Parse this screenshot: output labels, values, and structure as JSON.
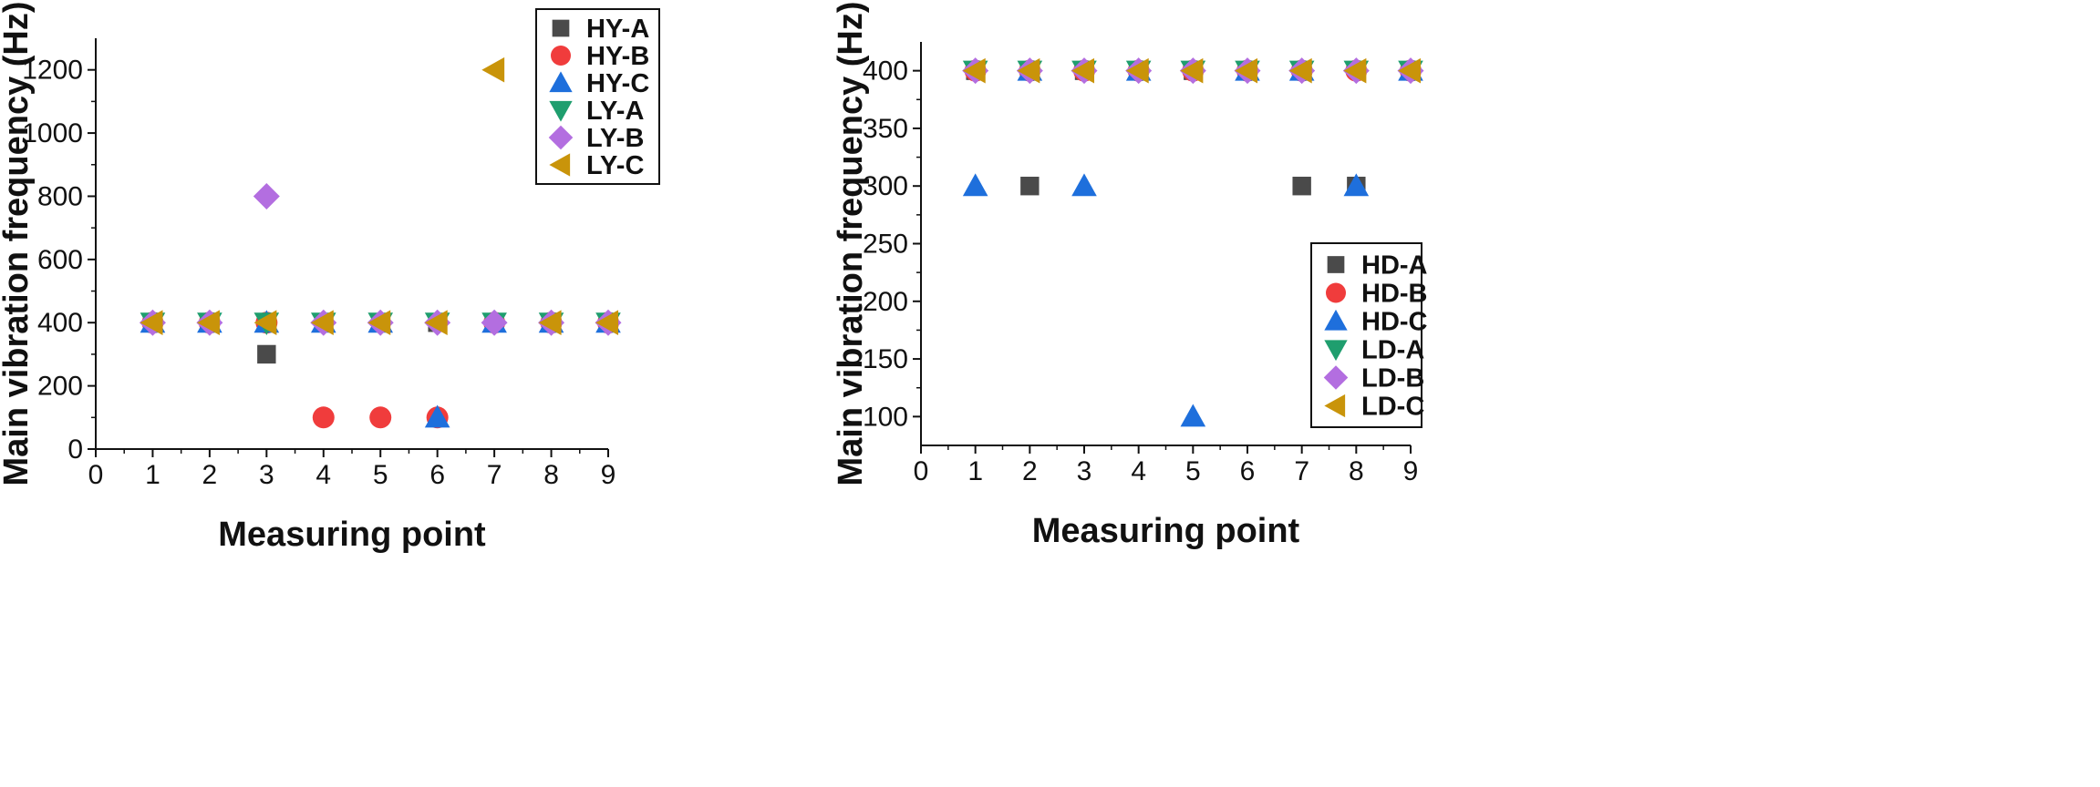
{
  "chart_data": [
    {
      "type": "scatter",
      "xlabel": "Measuring point",
      "ylabel": "Main vibration frequency (Hz)",
      "xlim": [
        0,
        9
      ],
      "ylim": [
        0,
        1300
      ],
      "xticks": [
        0,
        1,
        2,
        3,
        4,
        5,
        6,
        7,
        8,
        9
      ],
      "yticks": [
        0,
        200,
        400,
        600,
        800,
        1000,
        1200
      ],
      "legend_position": "top-right",
      "series": [
        {
          "name": "HY-A",
          "marker": "square",
          "color": "#4a4a4a",
          "x": [
            1,
            2,
            3,
            4,
            5,
            6,
            7,
            8,
            9
          ],
          "y": [
            400,
            400,
            300,
            400,
            400,
            400,
            400,
            400,
            400
          ]
        },
        {
          "name": "HY-B",
          "marker": "circle",
          "color": "#f03c3c",
          "x": [
            1,
            2,
            3,
            4,
            5,
            6,
            7,
            8,
            9
          ],
          "y": [
            400,
            400,
            400,
            100,
            100,
            100,
            400,
            400,
            400
          ]
        },
        {
          "name": "HY-C",
          "marker": "triangle-up",
          "color": "#1e6fdc",
          "x": [
            1,
            2,
            3,
            4,
            5,
            6,
            7,
            8,
            9
          ],
          "y": [
            400,
            400,
            400,
            400,
            400,
            100,
            400,
            400,
            400
          ]
        },
        {
          "name": "LY-A",
          "marker": "triangle-down",
          "color": "#1f9e6e",
          "x": [
            1,
            2,
            3,
            4,
            5,
            6,
            7,
            8,
            9
          ],
          "y": [
            400,
            400,
            400,
            400,
            400,
            400,
            400,
            400,
            400
          ]
        },
        {
          "name": "LY-B",
          "marker": "diamond",
          "color": "#b36ee0",
          "x": [
            1,
            2,
            3,
            4,
            5,
            6,
            7,
            8,
            9
          ],
          "y": [
            400,
            400,
            800,
            400,
            400,
            400,
            400,
            400,
            400
          ]
        },
        {
          "name": "LY-C",
          "marker": "triangle-left",
          "color": "#c9940a",
          "x": [
            1,
            2,
            3,
            4,
            5,
            6,
            7,
            8,
            9
          ],
          "y": [
            400,
            400,
            400,
            400,
            400,
            400,
            1200,
            400,
            400
          ]
        }
      ]
    },
    {
      "type": "scatter",
      "xlabel": "Measuring point",
      "ylabel": "Main vibration frequency (Hz)",
      "xlim": [
        0,
        9
      ],
      "ylim": [
        75,
        425
      ],
      "xticks": [
        0,
        1,
        2,
        3,
        4,
        5,
        6,
        7,
        8,
        9
      ],
      "yticks": [
        100,
        150,
        200,
        250,
        300,
        350,
        400
      ],
      "legend_position": "bottom-right",
      "series": [
        {
          "name": "HD-A",
          "marker": "square",
          "color": "#4a4a4a",
          "x": [
            1,
            2,
            3,
            4,
            5,
            6,
            7,
            8,
            9
          ],
          "y": [
            400,
            300,
            400,
            400,
            400,
            400,
            300,
            300,
            400
          ]
        },
        {
          "name": "HD-B",
          "marker": "circle",
          "color": "#f03c3c",
          "x": [
            1,
            2,
            3,
            4,
            5,
            6,
            7,
            8,
            9
          ],
          "y": [
            400,
            400,
            400,
            400,
            400,
            400,
            400,
            400,
            400
          ]
        },
        {
          "name": "HD-C",
          "marker": "triangle-up",
          "color": "#1e6fdc",
          "x": [
            1,
            2,
            3,
            4,
            5,
            6,
            7,
            8,
            9
          ],
          "y": [
            300,
            400,
            300,
            400,
            100,
            400,
            400,
            300,
            400
          ]
        },
        {
          "name": "LD-A",
          "marker": "triangle-down",
          "color": "#1f9e6e",
          "x": [
            1,
            2,
            3,
            4,
            5,
            6,
            7,
            8,
            9
          ],
          "y": [
            400,
            400,
            400,
            400,
            400,
            400,
            400,
            400,
            400
          ]
        },
        {
          "name": "LD-B",
          "marker": "diamond",
          "color": "#b36ee0",
          "x": [
            1,
            2,
            3,
            4,
            5,
            6,
            7,
            8,
            9
          ],
          "y": [
            400,
            400,
            400,
            400,
            400,
            400,
            400,
            400,
            400
          ]
        },
        {
          "name": "LD-C",
          "marker": "triangle-left",
          "color": "#c9940a",
          "x": [
            1,
            2,
            3,
            4,
            5,
            6,
            7,
            8,
            9
          ],
          "y": [
            400,
            400,
            400,
            400,
            400,
            400,
            400,
            400,
            400
          ]
        }
      ]
    }
  ]
}
